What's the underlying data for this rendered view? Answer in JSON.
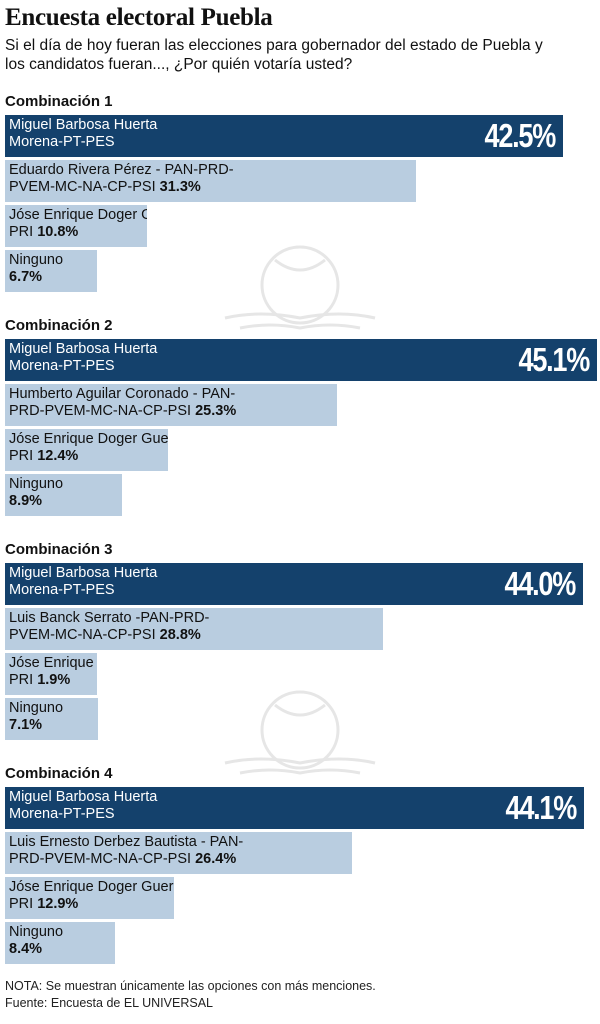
{
  "header": {
    "title": "Encuesta electoral Puebla",
    "subtitle": "Si el día de hoy fueran las elecciones para gobernador del estado de Puebla y los candidatos fueran..., ¿Por quién votaría usted?"
  },
  "colors": {
    "lead_bar": "#14416c",
    "other_bar": "#b9cde0"
  },
  "chart_data": {
    "type": "bar",
    "orientation": "horizontal",
    "xlim": [
      0,
      45.1
    ],
    "groups": [
      {
        "label": "Combinación 1",
        "bars": [
          {
            "line1": "Miguel Barbosa Huerta",
            "line2": "Morena-PT-PES",
            "value": 42.5,
            "pct_label": "42.5%"
          },
          {
            "line1": "Eduardo Rivera Pérez - PAN-PRD-",
            "line2": "PVEM-MC-NA-CP-PSI",
            "value": 31.3,
            "pct_label": "31.3%"
          },
          {
            "line1": "Jóse Enrique Doger Guerrero",
            "line2": "PRI",
            "value": 10.8,
            "pct_label": "10.8%"
          },
          {
            "line1": "Ninguno",
            "line2": "",
            "value": 6.7,
            "pct_label": "6.7%"
          }
        ]
      },
      {
        "label": "Combinación 2",
        "bars": [
          {
            "line1": "Miguel Barbosa Huerta",
            "line2": "Morena-PT-PES",
            "value": 45.1,
            "pct_label": "45.1%"
          },
          {
            "line1": "Humberto Aguilar Coronado - PAN-",
            "line2": "PRD-PVEM-MC-NA-CP-PSI",
            "value": 25.3,
            "pct_label": "25.3%"
          },
          {
            "line1": "Jóse Enrique Doger Guerrero",
            "line2": "PRI",
            "value": 12.4,
            "pct_label": "12.4%"
          },
          {
            "line1": "Ninguno",
            "line2": "",
            "value": 8.9,
            "pct_label": "8.9%"
          }
        ]
      },
      {
        "label": "Combinación 3",
        "bars": [
          {
            "line1": "Miguel Barbosa Huerta",
            "line2": "Morena-PT-PES",
            "value": 44.0,
            "pct_label": "44.0%"
          },
          {
            "line1": "Luis Banck Serrato -PAN-PRD-",
            "line2": "PVEM-MC-NA-CP-PSI",
            "value": 28.8,
            "pct_label": "28.8%"
          },
          {
            "line1": "Jóse Enrique Doger Guerrero",
            "line2": "PRI",
            "value": 1.9,
            "pct_label": "1.9%"
          },
          {
            "line1": "Ninguno",
            "line2": "",
            "value": 7.1,
            "pct_label": "7.1%"
          }
        ]
      },
      {
        "label": "Combinación 4",
        "bars": [
          {
            "line1": "Miguel Barbosa Huerta",
            "line2": "Morena-PT-PES",
            "value": 44.1,
            "pct_label": "44.1%"
          },
          {
            "line1": "Luis Ernesto Derbez Bautista - PAN-",
            "line2": "PRD-PVEM-MC-NA-CP-PSI",
            "value": 26.4,
            "pct_label": "26.4%"
          },
          {
            "line1": "Jóse Enrique Doger Guerrero",
            "line2": "PRI",
            "value": 12.9,
            "pct_label": "12.9%"
          },
          {
            "line1": "Ninguno",
            "line2": "",
            "value": 8.4,
            "pct_label": "8.4%"
          }
        ]
      }
    ]
  },
  "footer": {
    "note": "NOTA: Se muestran únicamente las opciones con más menciones.",
    "source": "Fuente: Encuesta de EL UNIVERSAL"
  }
}
